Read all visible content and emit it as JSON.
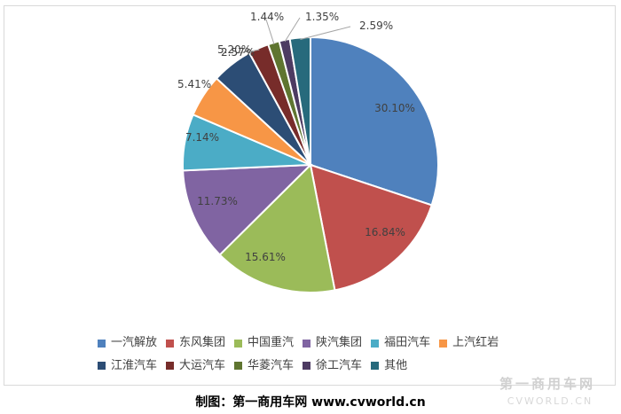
{
  "chart_data": {
    "type": "pie",
    "title": "",
    "slices": [
      {
        "label": "一汽解放",
        "value": 30.1,
        "display": "30.10%",
        "color": "#4f81bd",
        "label_color": "#404040"
      },
      {
        "label": "东风集团",
        "value": 16.84,
        "display": "16.84%",
        "color": "#c0504d",
        "label_color": "#404040"
      },
      {
        "label": "中国重汽",
        "value": 15.61,
        "display": "15.61%",
        "color": "#9bbb59",
        "label_color": "#404040"
      },
      {
        "label": "陕汽集团",
        "value": 11.73,
        "display": "11.73%",
        "color": "#8064a2",
        "label_color": "#404040"
      },
      {
        "label": "福田汽车",
        "value": 7.14,
        "display": "7.14%",
        "color": "#4bacc6",
        "label_color": "#404040"
      },
      {
        "label": "上汽红岩",
        "value": 5.41,
        "display": "5.41%",
        "color": "#f79646",
        "label_color": "#404040"
      },
      {
        "label": "江淮汽车",
        "value": 5.2,
        "display": "5.20%",
        "color": "#2c4d75",
        "label_color": "#404040"
      },
      {
        "label": "大运汽车",
        "value": 2.57,
        "display": "2.57%",
        "color": "#772c2a",
        "label_color": "#404040"
      },
      {
        "label": "华菱汽车",
        "value": 1.44,
        "display": "1.44%",
        "color": "#5f7530",
        "label_color": "#404040"
      },
      {
        "label": "徐工汽车",
        "value": 1.35,
        "display": "1.35%",
        "color": "#4d3b62",
        "label_color": "#404040"
      },
      {
        "label": "其他",
        "value": 2.59,
        "display": "2.59%",
        "color": "#276a7c",
        "label_color": "#404040"
      }
    ],
    "legend_position": "bottom"
  },
  "credit_text": "制图：第一商用车网 www.cvworld.cn",
  "watermark": {
    "main": "第一商用车网",
    "sub": "CVWORLD.CN"
  }
}
